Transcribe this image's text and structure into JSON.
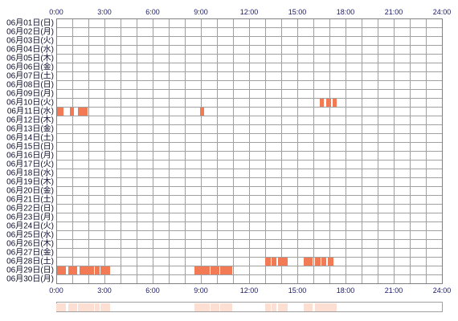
{
  "chart_data": {
    "type": "heatmap",
    "x_ticks": [
      "0:00",
      "3:00",
      "6:00",
      "9:00",
      "12:00",
      "15:00",
      "18:00",
      "21:00",
      "24:00"
    ],
    "xlim": [
      "0:00",
      "24:00"
    ],
    "grid": true,
    "rows": [
      {
        "label": "06月01日(日)",
        "intervals": []
      },
      {
        "label": "06月02日(月)",
        "intervals": []
      },
      {
        "label": "06月03日(火)",
        "intervals": []
      },
      {
        "label": "06月04日(水)",
        "intervals": []
      },
      {
        "label": "06月05日(木)",
        "intervals": []
      },
      {
        "label": "06月06日(金)",
        "intervals": []
      },
      {
        "label": "06月07日(土)",
        "intervals": []
      },
      {
        "label": "06月08日(日)",
        "intervals": []
      },
      {
        "label": "06月09日(月)",
        "intervals": []
      },
      {
        "label": "06月10日(火)",
        "intervals": [
          [
            "16:24",
            "16:39"
          ],
          [
            "16:48",
            "17:06"
          ],
          [
            "17:12",
            "17:27"
          ]
        ]
      },
      {
        "label": "06月11日(水)",
        "intervals": [
          [
            "0:00",
            "0:27"
          ],
          [
            "0:51",
            "1:06"
          ],
          [
            "1:21",
            "1:57"
          ],
          [
            "8:57",
            "9:12"
          ]
        ]
      },
      {
        "label": "06月12日(木)",
        "intervals": []
      },
      {
        "label": "06月13日(金)",
        "intervals": []
      },
      {
        "label": "06月14日(土)",
        "intervals": []
      },
      {
        "label": "06月15日(日)",
        "intervals": []
      },
      {
        "label": "06月16日(月)",
        "intervals": []
      },
      {
        "label": "06月17日(火)",
        "intervals": []
      },
      {
        "label": "06月18日(水)",
        "intervals": []
      },
      {
        "label": "06月19日(木)",
        "intervals": []
      },
      {
        "label": "06月20日(金)",
        "intervals": []
      },
      {
        "label": "06月21日(土)",
        "intervals": []
      },
      {
        "label": "06月22日(日)",
        "intervals": []
      },
      {
        "label": "06月23日(月)",
        "intervals": []
      },
      {
        "label": "06月24日(火)",
        "intervals": []
      },
      {
        "label": "06月25日(水)",
        "intervals": []
      },
      {
        "label": "06月26日(木)",
        "intervals": []
      },
      {
        "label": "06月27日(金)",
        "intervals": []
      },
      {
        "label": "06月28日(土)",
        "intervals": [
          [
            "13:00",
            "13:21"
          ],
          [
            "13:24",
            "13:42"
          ],
          [
            "13:48",
            "14:24"
          ],
          [
            "15:24",
            "15:57"
          ],
          [
            "16:06",
            "16:27"
          ],
          [
            "16:30",
            "16:48"
          ],
          [
            "16:54",
            "17:15"
          ]
        ]
      },
      {
        "label": "06月29日(日)",
        "intervals": [
          [
            "0:00",
            "0:36"
          ],
          [
            "0:45",
            "1:18"
          ],
          [
            "1:27",
            "2:21"
          ],
          [
            "2:24",
            "2:42"
          ],
          [
            "2:45",
            "3:21"
          ],
          [
            "8:36",
            "9:33"
          ],
          [
            "9:36",
            "10:09"
          ],
          [
            "10:12",
            "10:57"
          ]
        ]
      },
      {
        "label": "06月30日(月)",
        "intervals": []
      }
    ]
  },
  "colors": {
    "background": "#ffffff",
    "activity": "#f27b55",
    "summary": "#fcdfd2",
    "grid": "#a0a0a0",
    "frame": "#808080",
    "tick_label": "#1a1a6a",
    "day_label": "#0d0d2b"
  }
}
